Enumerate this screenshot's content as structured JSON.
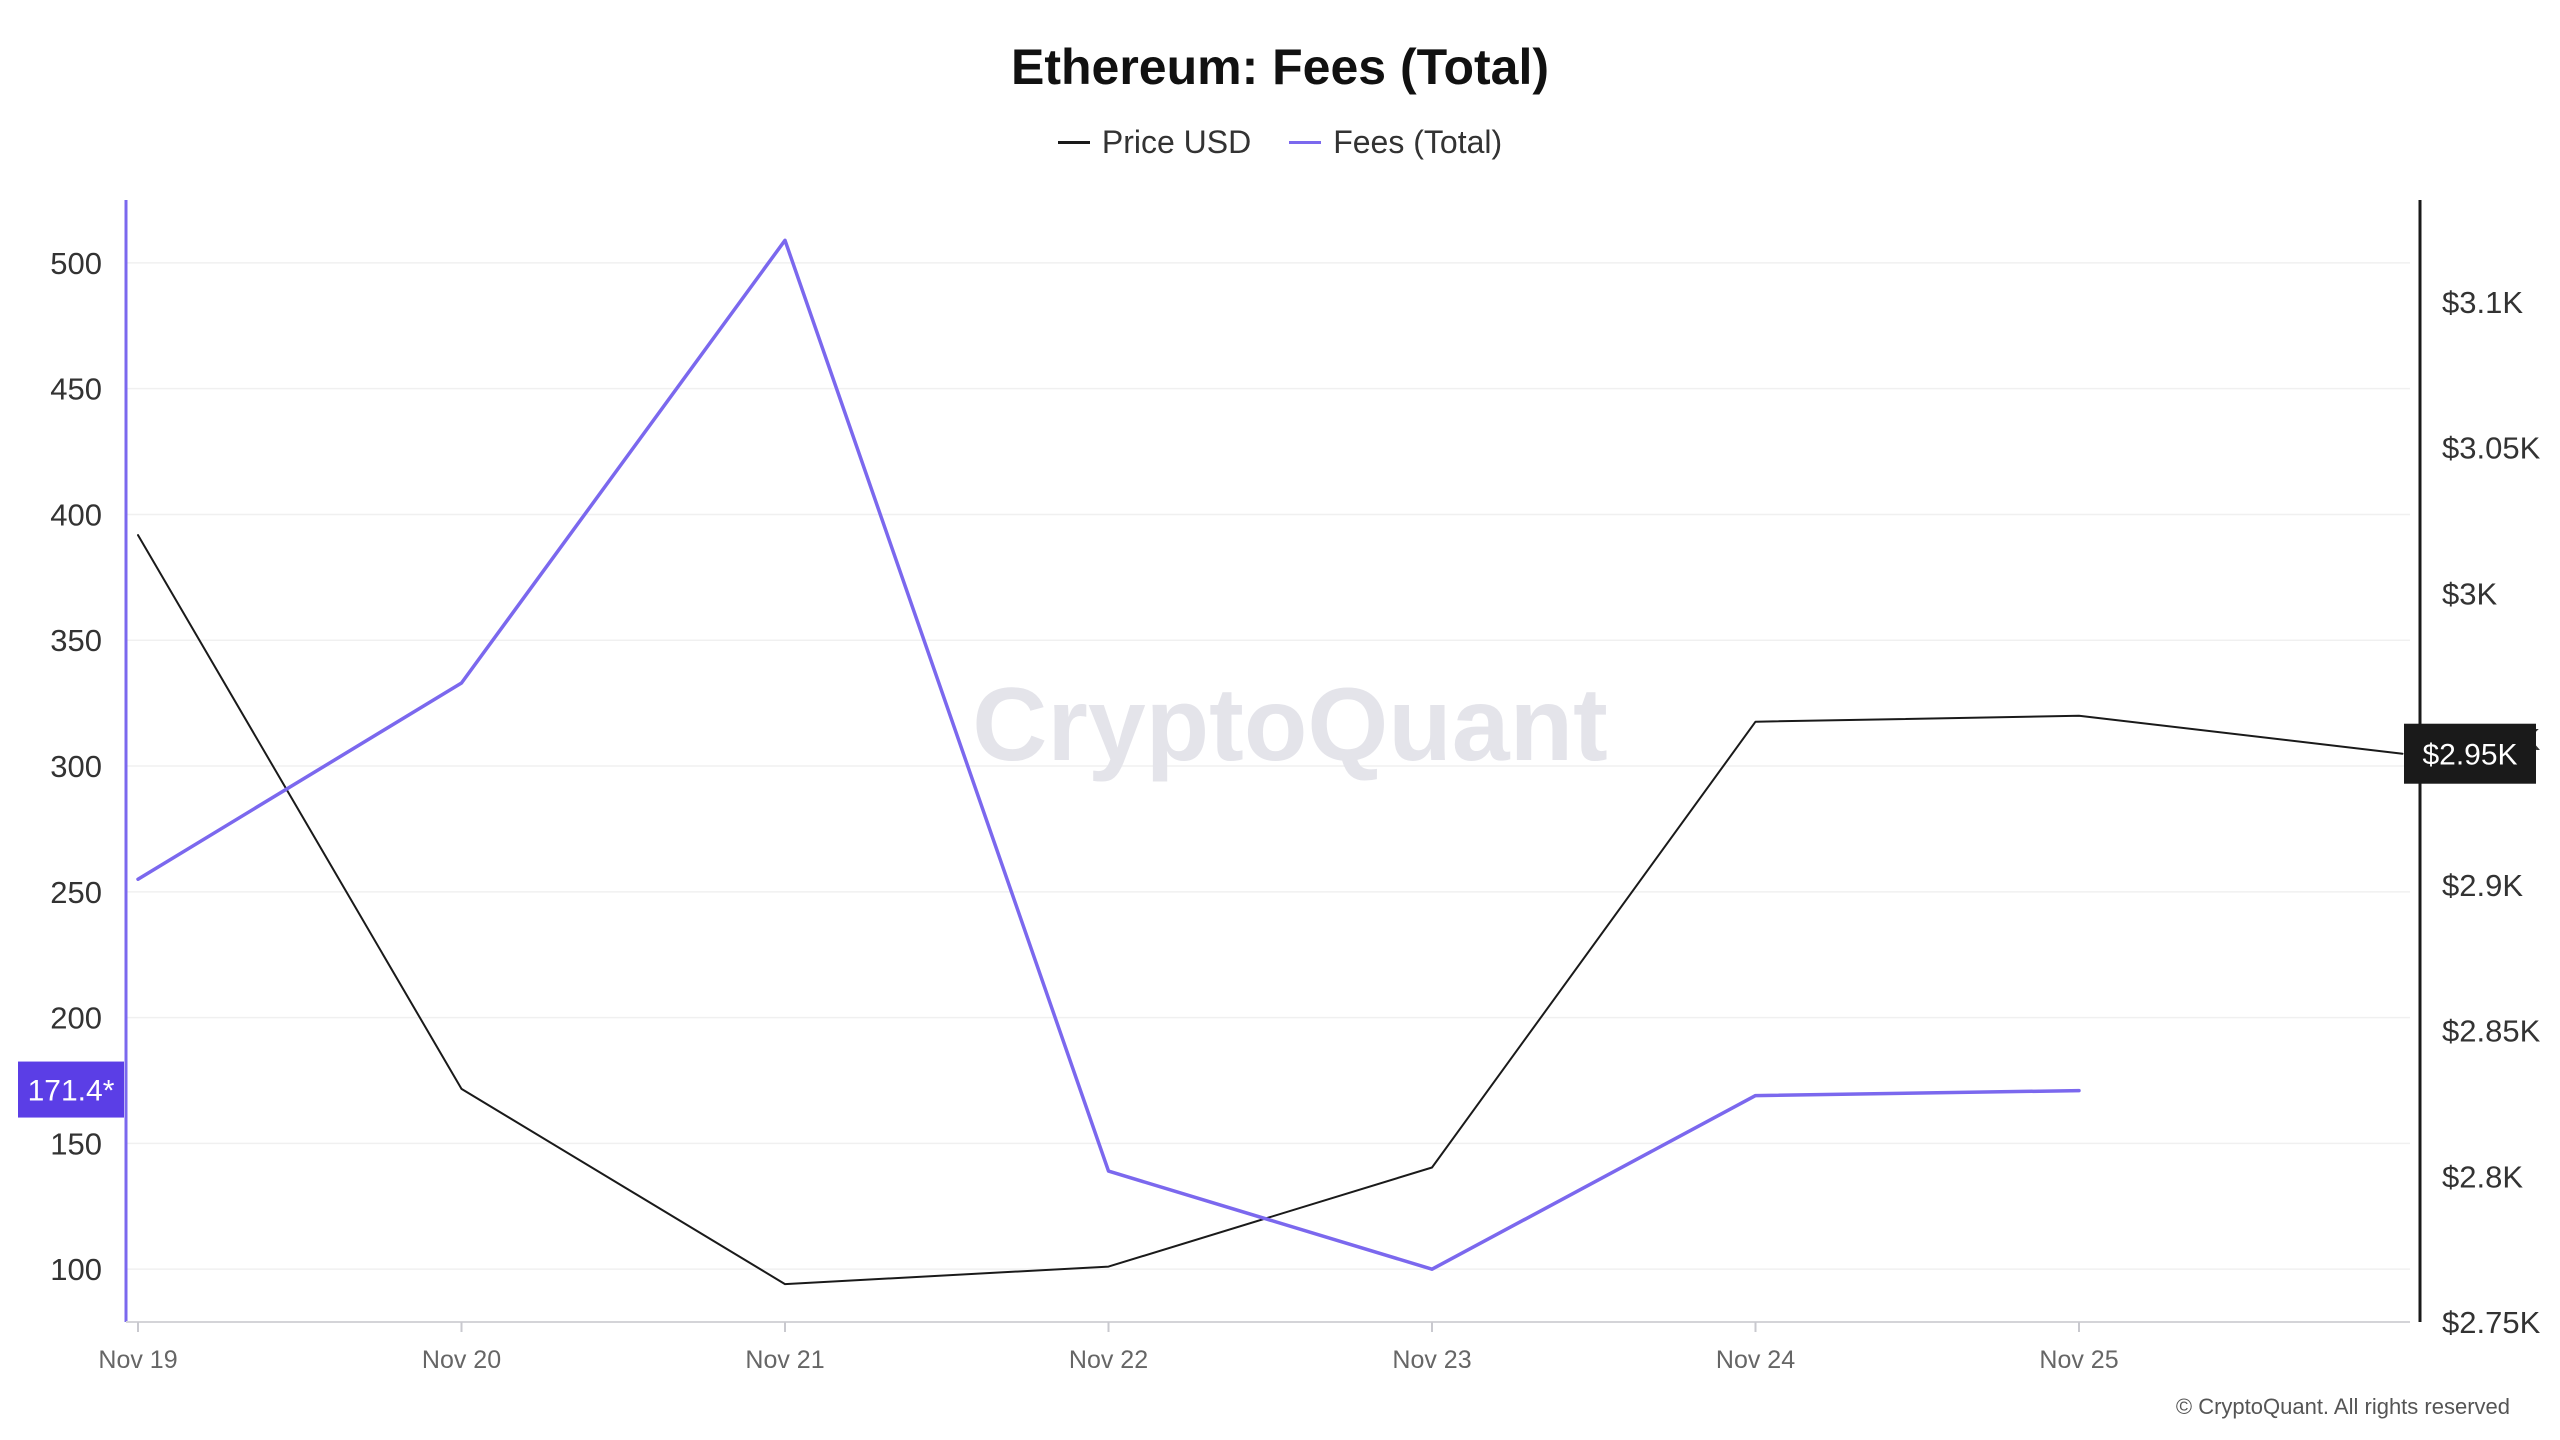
{
  "chart_data": {
    "type": "line",
    "title": "Ethereum: Fees (Total)",
    "categories": [
      "Nov 19",
      "Nov 20",
      "Nov 21",
      "Nov 22",
      "Nov 23",
      "Nov 24",
      "Nov 25"
    ],
    "series": [
      {
        "name": "Price USD",
        "axis": "right",
        "color": "#1a1a1a",
        "x": [
          0,
          1,
          2,
          3,
          4,
          5,
          6,
          7
        ],
        "values": [
          3020,
          2830,
          2763,
          2769,
          2803,
          2956,
          2958,
          2945
        ]
      },
      {
        "name": "Fees (Total)",
        "axis": "left",
        "color": "#7b68ee",
        "x": [
          0,
          1,
          2,
          3,
          4,
          5,
          6
        ],
        "values": [
          255,
          333,
          509,
          139,
          100,
          169,
          171
        ]
      }
    ],
    "y_left": {
      "ticks": [
        100,
        150,
        200,
        250,
        300,
        350,
        400,
        450,
        500
      ],
      "tick_labels": [
        "100",
        "150",
        "200",
        "250",
        "300",
        "350",
        "400",
        "450",
        "500"
      ],
      "range": [
        79,
        525
      ]
    },
    "y_right": {
      "ticks": [
        2750,
        2800,
        2850,
        2900,
        2950,
        3000,
        3050,
        3100
      ],
      "tick_labels": [
        "$2.75K",
        "$2.8K",
        "$2.85K",
        "$2.9K",
        "$2.95K",
        "$3K",
        "$3.05K",
        "$3.1K"
      ],
      "range": [
        2750,
        3135
      ]
    },
    "x_range": [
      0,
      7.1
    ],
    "current_markers": {
      "left_label": "171.4*",
      "left_value": 171.4,
      "right_label": "$2.95K",
      "right_value": 2945
    },
    "watermark": "CryptoQuant",
    "grid": true,
    "legend_position": "top-center"
  },
  "colors": {
    "fees_line": "#7b68ee",
    "price_line": "#1a1a1a",
    "left_badge": "#5b3ee6",
    "right_badge": "#1a1a1a",
    "grid": "#f0f0f0"
  },
  "footer": {
    "copyright": "© CryptoQuant. All rights reserved"
  }
}
